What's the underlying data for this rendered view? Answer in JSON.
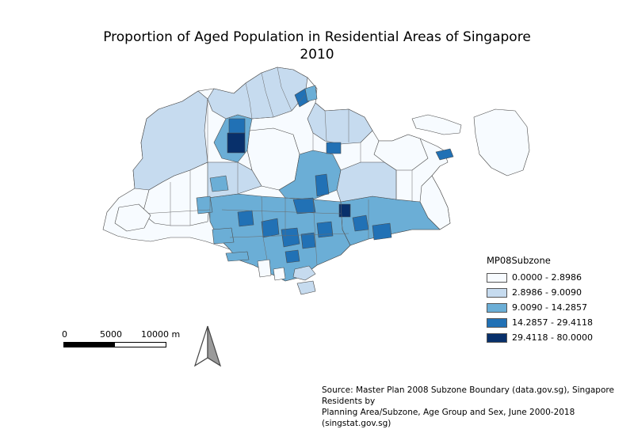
{
  "map": {
    "title_line1": "Proportion of Aged Population in Residential Areas of Singapore",
    "title_line2": "2010",
    "legend": {
      "title": "MP08Subzone",
      "classes": [
        {
          "label": "0.0000 - 2.8986",
          "color": "#f7fbff"
        },
        {
          "label": "2.8986 - 9.0090",
          "color": "#c6dbef"
        },
        {
          "label": "9.0090 - 14.2857",
          "color": "#6baed6"
        },
        {
          "label": "14.2857 - 29.4118",
          "color": "#2171b5"
        },
        {
          "label": "29.4118 - 80.0000",
          "color": "#08306b"
        }
      ]
    },
    "scale_bar": {
      "labels": [
        "0",
        "5000",
        "10000 m"
      ]
    },
    "north_arrow": "north-arrow-icon",
    "source_line1": "Source: Master Plan 2008 Subzone Boundary (data.gov.sg), Singapore Residents by",
    "source_line2": "Planning Area/Subzone, Age Group and Sex, June 2000-2018 (singstat.gov.sg)"
  }
}
